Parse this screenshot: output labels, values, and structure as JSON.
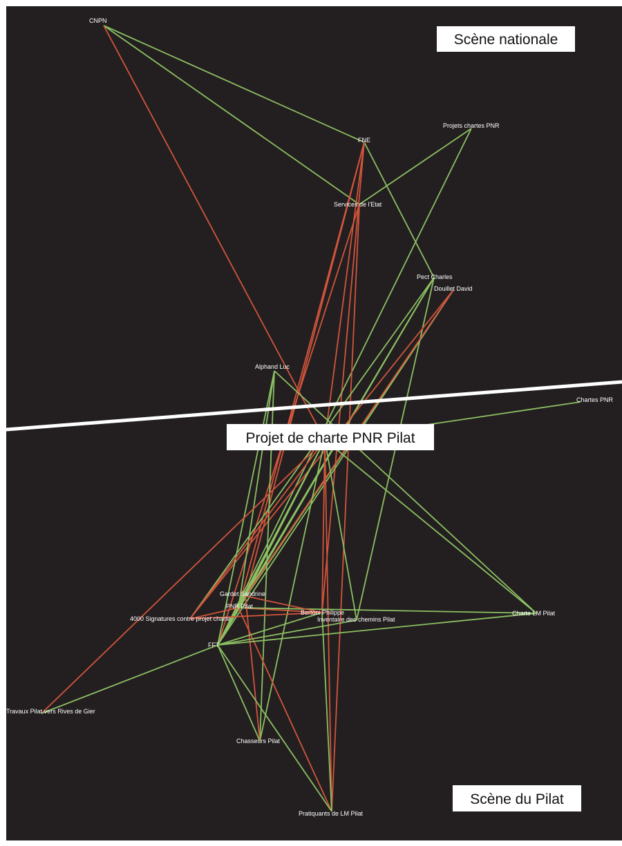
{
  "colors": {
    "background": "#231f20",
    "frame": "#ffffff",
    "support_edge": "#8cc063",
    "conflict_edge": "#d2553c",
    "divider": "#ffffff",
    "label": "#ffffff"
  },
  "scenes": {
    "national": "Scène nationale",
    "pilat": "Scène du Pilat",
    "center": "Projet de charte PNR Pilat"
  },
  "nodes": [
    {
      "id": "cnpn",
      "label": "CNPN"
    },
    {
      "id": "fne",
      "label": "FNE"
    },
    {
      "id": "projets",
      "label": "Projets chartes PNR"
    },
    {
      "id": "services",
      "label": "Services de l'Etat"
    },
    {
      "id": "pect",
      "label": "Pect Charles"
    },
    {
      "id": "douillet",
      "label": "Douillet David"
    },
    {
      "id": "alphand",
      "label": "Alphand Luc"
    },
    {
      "id": "chartes",
      "label": "Chartes PNR"
    },
    {
      "id": "projet",
      "label": ""
    },
    {
      "id": "gardet",
      "label": "Gardet Sandrine"
    },
    {
      "id": "pnr",
      "label": "PNR Pilat"
    },
    {
      "id": "bertoni",
      "label": "Bertoni Philippe"
    },
    {
      "id": "inventaire",
      "label": "Inventaire des chemins Pilat"
    },
    {
      "id": "chartelm",
      "label": "Charte LM Pilat"
    },
    {
      "id": "signatures",
      "label": "4000 Signatures contre projet charte"
    },
    {
      "id": "fft",
      "label": "FFT"
    },
    {
      "id": "travaux",
      "label": "Travaux Pilat vers Rives de Gier"
    },
    {
      "id": "chasseurs",
      "label": "Chasseurs Pilat"
    },
    {
      "id": "pratiquants",
      "label": "Pratiquants de LM Pilat"
    }
  ],
  "edges": [
    {
      "from": "cnpn",
      "to": "fne",
      "type": "support"
    },
    {
      "from": "cnpn",
      "to": "services",
      "type": "support"
    },
    {
      "from": "cnpn",
      "to": "projet",
      "type": "conflict"
    },
    {
      "from": "fne",
      "to": "pect",
      "type": "support"
    },
    {
      "from": "fne",
      "to": "gardet",
      "type": "conflict"
    },
    {
      "from": "fne",
      "to": "bertoni",
      "type": "conflict"
    },
    {
      "from": "fne",
      "to": "projet",
      "type": "conflict"
    },
    {
      "from": "fne",
      "to": "pnr",
      "type": "conflict"
    },
    {
      "from": "projets",
      "to": "services",
      "type": "support"
    },
    {
      "from": "projets",
      "to": "fft",
      "type": "support"
    },
    {
      "from": "services",
      "to": "pratiquants",
      "type": "conflict"
    },
    {
      "from": "services",
      "to": "fft",
      "type": "conflict"
    },
    {
      "from": "pect",
      "to": "pnr",
      "type": "support"
    },
    {
      "from": "pect",
      "to": "fft",
      "type": "support"
    },
    {
      "from": "pect",
      "to": "gardet",
      "type": "support"
    },
    {
      "from": "pect",
      "to": "signatures",
      "type": "support"
    },
    {
      "from": "pect",
      "to": "inventaire",
      "type": "support"
    },
    {
      "from": "douillet",
      "to": "pnr",
      "type": "support"
    },
    {
      "from": "douillet",
      "to": "signatures",
      "type": "conflict"
    },
    {
      "from": "douillet",
      "to": "fft",
      "type": "support"
    },
    {
      "from": "douillet",
      "to": "gardet",
      "type": "conflict"
    },
    {
      "from": "alphand",
      "to": "pnr",
      "type": "support"
    },
    {
      "from": "alphand",
      "to": "chartelm",
      "type": "support"
    },
    {
      "from": "alphand",
      "to": "chasseurs",
      "type": "support"
    },
    {
      "from": "alphand",
      "to": "fft",
      "type": "support"
    },
    {
      "from": "chartes",
      "to": "projet",
      "type": "support"
    },
    {
      "from": "projet",
      "to": "travaux",
      "type": "conflict"
    },
    {
      "from": "projet",
      "to": "gardet",
      "type": "support"
    },
    {
      "from": "projet",
      "to": "signatures",
      "type": "conflict"
    },
    {
      "from": "projet",
      "to": "pnr",
      "type": "support"
    },
    {
      "from": "projet",
      "to": "bertoni",
      "type": "conflict"
    },
    {
      "from": "projet",
      "to": "inventaire",
      "type": "support"
    },
    {
      "from": "projet",
      "to": "chartelm",
      "type": "support"
    },
    {
      "from": "projet",
      "to": "chasseurs",
      "type": "support"
    },
    {
      "from": "projet",
      "to": "pratiquants",
      "type": "conflict"
    },
    {
      "from": "projet",
      "to": "fft",
      "type": "support"
    },
    {
      "from": "pnr",
      "to": "bertoni",
      "type": "conflict"
    },
    {
      "from": "pnr",
      "to": "chartelm",
      "type": "support"
    },
    {
      "from": "pnr",
      "to": "pratiquants",
      "type": "conflict"
    },
    {
      "from": "pnr",
      "to": "signatures",
      "type": "conflict"
    },
    {
      "from": "gardet",
      "to": "bertoni",
      "type": "conflict"
    },
    {
      "from": "gardet",
      "to": "chasseurs",
      "type": "conflict"
    },
    {
      "from": "gardet",
      "to": "fft",
      "type": "support"
    },
    {
      "from": "bertoni",
      "to": "fft",
      "type": "support"
    },
    {
      "from": "bertoni",
      "to": "pratiquants",
      "type": "support"
    },
    {
      "from": "bertoni",
      "to": "signatures",
      "type": "conflict"
    },
    {
      "from": "fft",
      "to": "chartelm",
      "type": "support"
    },
    {
      "from": "fft",
      "to": "travaux",
      "type": "support"
    },
    {
      "from": "fft",
      "to": "pratiquants",
      "type": "support"
    },
    {
      "from": "fft",
      "to": "chasseurs",
      "type": "support"
    },
    {
      "from": "inventaire",
      "to": "fft",
      "type": "support"
    }
  ]
}
